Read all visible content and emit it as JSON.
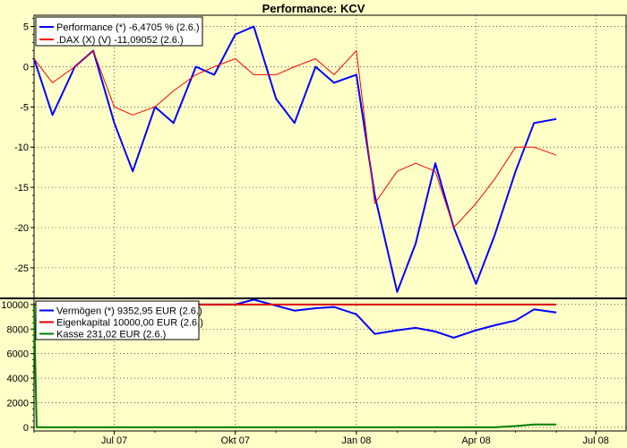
{
  "chart_data": [
    {
      "type": "line",
      "panel": "performance",
      "title": "Performance: KCV",
      "xlabel": "",
      "ylabel": "",
      "x_ticks": [
        "Jul 07",
        "Okt 07",
        "Jan 08",
        "Apr 08",
        "Jul 08"
      ],
      "y_ticks": [
        5,
        0,
        -5,
        -10,
        -15,
        -20,
        -25
      ],
      "ylim": [
        -28.8,
        6.4
      ],
      "grid": true,
      "legend_position": "top-left",
      "x": [
        "2007-05-01",
        "2007-05-15",
        "2007-06-01",
        "2007-06-15",
        "2007-07-01",
        "2007-07-15",
        "2007-08-01",
        "2007-08-15",
        "2007-09-01",
        "2007-09-15",
        "2007-10-01",
        "2007-10-15",
        "2007-11-01",
        "2007-11-15",
        "2007-12-01",
        "2007-12-15",
        "2008-01-01",
        "2008-01-15",
        "2008-02-01",
        "2008-02-15",
        "2008-03-01",
        "2008-03-15",
        "2008-04-01",
        "2008-04-15",
        "2008-05-01",
        "2008-05-15",
        "2008-06-01"
      ],
      "series": [
        {
          "name": "Performance (*) -6,4705 % (2.6.)",
          "color": "#0000ff",
          "values": [
            1,
            -6,
            0,
            2,
            -7,
            -13,
            -5,
            -7,
            0,
            -1,
            4,
            5,
            -4,
            -7,
            0,
            -2,
            -1,
            -16,
            -28,
            -22,
            -12,
            -20,
            -27,
            -21,
            -13,
            -7,
            -6.5
          ]
        },
        {
          "name": ".DAX (X) (V) -11,09052 (2.6.)",
          "color": "#ff0000",
          "values": [
            1,
            -2,
            0,
            2,
            -5,
            -6,
            -5,
            -3,
            -1,
            0,
            1,
            -1,
            -1,
            0,
            1,
            -1,
            2,
            -17,
            -13,
            -12,
            -13,
            -20,
            -17,
            -14,
            -10,
            -10,
            -11
          ]
        }
      ]
    },
    {
      "type": "line",
      "panel": "vermoegen",
      "x_ticks": [
        "Jul 07",
        "Okt 07",
        "Jan 08",
        "Apr 08",
        "Jul 08"
      ],
      "y_ticks": [
        10000,
        8000,
        6000,
        4000,
        2000,
        0
      ],
      "ylim": [
        -300,
        10500
      ],
      "grid": true,
      "legend_position": "top-left",
      "x": [
        "2007-05-01",
        "2007-05-03",
        "2007-06-01",
        "2007-07-01",
        "2007-08-01",
        "2007-09-01",
        "2007-10-01",
        "2007-10-15",
        "2007-11-01",
        "2007-11-15",
        "2007-12-01",
        "2007-12-15",
        "2008-01-01",
        "2008-01-15",
        "2008-02-01",
        "2008-02-15",
        "2008-03-01",
        "2008-03-15",
        "2008-04-01",
        "2008-04-15",
        "2008-05-01",
        "2008-05-15",
        "2008-06-01"
      ],
      "series": [
        {
          "name": "Vermögen (*) 9352,95 EUR (2.6.)",
          "color": "#0000ff",
          "values": [
            10000,
            10000,
            10000,
            10000,
            10000,
            10000,
            10000,
            10400,
            9900,
            9500,
            9700,
            9800,
            9200,
            7600,
            7900,
            8100,
            7800,
            7300,
            7900,
            8300,
            8700,
            9600,
            9350
          ]
        },
        {
          "name": "Eigenkapital 10000,00 EUR (2.6.)",
          "color": "#dd0000",
          "values": [
            10000,
            10000,
            10000,
            10000,
            10000,
            10000,
            10000,
            10000,
            10000,
            10000,
            10000,
            10000,
            10000,
            10000,
            10000,
            10000,
            10000,
            10000,
            10000,
            10000,
            10000,
            10000,
            10000
          ]
        },
        {
          "name": "Kasse 231,02 EUR (2.6.)",
          "color": "#008000",
          "values": [
            10000,
            0,
            0,
            0,
            0,
            0,
            0,
            0,
            0,
            0,
            0,
            0,
            0,
            0,
            0,
            0,
            0,
            0,
            0,
            0,
            100,
            231,
            231
          ]
        }
      ]
    }
  ]
}
